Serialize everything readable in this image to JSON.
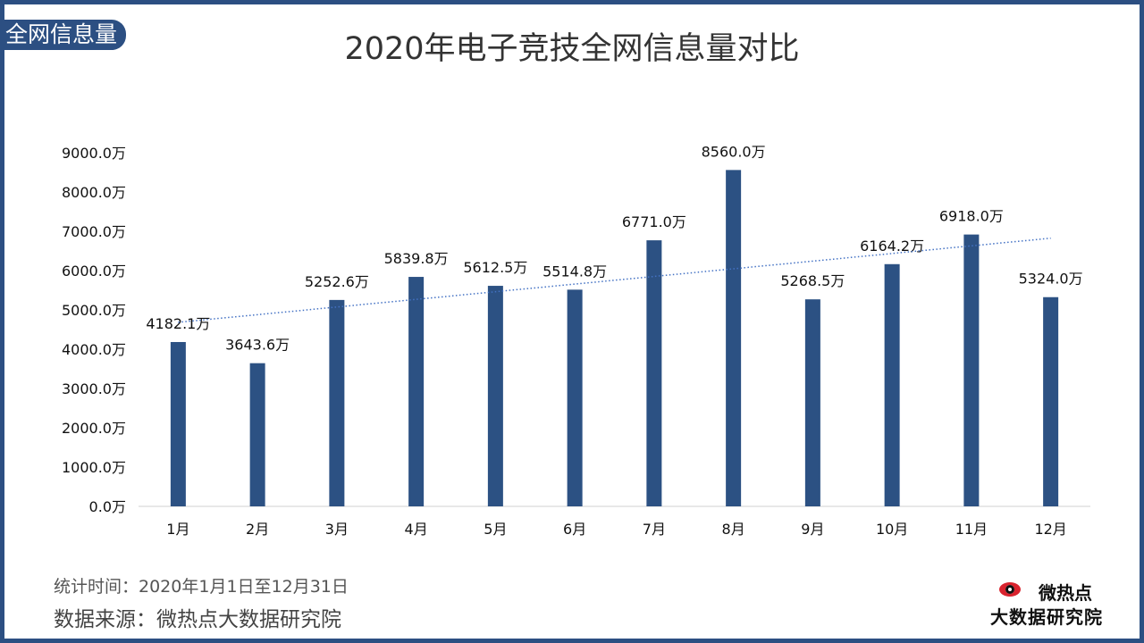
{
  "header": {
    "corner_tag": "全网信息量",
    "title": "2020年电子竞技全网信息量对比"
  },
  "footer": {
    "time_range": "统计时间：2020年1月1日至12月31日",
    "source": "数据来源：微热点大数据研究院"
  },
  "logo": {
    "top_text": "微热点",
    "bottom_text": "大数据研究院"
  },
  "colors": {
    "bar": "#2c5183",
    "trendline": "#4472c4",
    "frame": "#2c4f82"
  },
  "chart_data": {
    "type": "bar",
    "categories": [
      "1月",
      "2月",
      "3月",
      "4月",
      "5月",
      "6月",
      "7月",
      "8月",
      "9月",
      "10月",
      "11月",
      "12月"
    ],
    "values": [
      4182.1,
      3643.6,
      5252.6,
      5839.8,
      5612.5,
      5514.8,
      6771.0,
      8560.0,
      5268.5,
      6164.2,
      6918.0,
      5324.0
    ],
    "data_labels": [
      "4182.1万",
      "3643.6万",
      "5252.6万",
      "5839.8万",
      "5612.5万",
      "5514.8万",
      "6771.0万",
      "8560.0万",
      "5268.5万",
      "6164.2万",
      "6918.0万",
      "5324.0万"
    ],
    "y_ticks": [
      "0.0万",
      "1000.0万",
      "2000.0万",
      "3000.0万",
      "4000.0万",
      "5000.0万",
      "6000.0万",
      "7000.0万",
      "8000.0万",
      "9000.0万"
    ],
    "ylim": [
      0,
      9000
    ],
    "trendline": "linear",
    "grid": false,
    "legend": "none"
  }
}
